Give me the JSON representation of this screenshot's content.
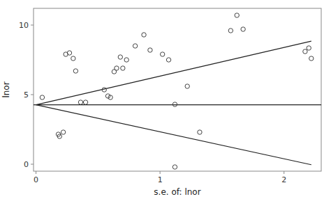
{
  "chart_data": {
    "type": "scatter",
    "xlabel": "s.e. of: lnor",
    "ylabel": "lnor",
    "xlim": [
      -0.02,
      2.3
    ],
    "ylim": [
      -0.5,
      11.2
    ],
    "xticks": [
      0,
      1,
      2
    ],
    "yticks": [
      0,
      5,
      10
    ],
    "grid": false,
    "series": [
      {
        "type": "scatter",
        "color": "#444444",
        "marker": "open-circle",
        "x": [
          0.05,
          0.18,
          0.19,
          0.22,
          0.24,
          0.27,
          0.3,
          0.32,
          0.36,
          0.4,
          0.55,
          0.58,
          0.6,
          0.63,
          0.65,
          0.68,
          0.7,
          0.73,
          0.8,
          0.87,
          0.92,
          1.02,
          1.07,
          1.12,
          1.22,
          1.32,
          1.57,
          1.62,
          1.67,
          2.17,
          2.2,
          2.22,
          1.12
        ],
        "values": [
          4.8,
          2.15,
          2.0,
          2.3,
          7.9,
          8.0,
          7.6,
          6.7,
          4.45,
          4.45,
          5.35,
          4.9,
          4.8,
          6.65,
          6.9,
          7.7,
          6.9,
          7.5,
          8.5,
          9.3,
          8.2,
          7.9,
          7.5,
          4.3,
          5.6,
          2.3,
          9.6,
          10.7,
          9.7,
          8.1,
          8.35,
          7.6,
          -0.2
        ]
      },
      {
        "type": "line",
        "color": "#222222",
        "line_style": "solid",
        "x": [
          0.0,
          2.22
        ],
        "values": [
          4.27,
          8.8432
        ]
      },
      {
        "type": "line",
        "color": "#222222",
        "line_style": "solid",
        "x": [
          0.0,
          2.22
        ],
        "values": [
          4.27,
          -0.0368
        ]
      },
      {
        "type": "line",
        "color": "#222222",
        "line_style": "solid",
        "x": [
          -0.02,
          2.3
        ],
        "values": [
          4.27,
          4.27
        ]
      }
    ]
  }
}
